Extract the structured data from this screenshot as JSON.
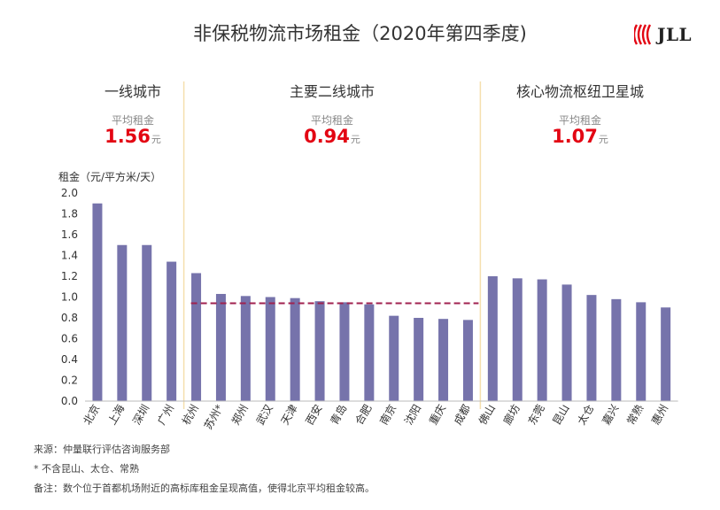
{
  "header": {
    "title": "非保税物流市场租金（2020年第四季度)",
    "logo_text": "JLL"
  },
  "groups": [
    {
      "title": "一线城市",
      "avg_label": "平均租金",
      "avg_value": "1.56",
      "unit": "元"
    },
    {
      "title": "主要二线城市",
      "avg_label": "平均租金",
      "avg_value": "0.94",
      "unit": "元"
    },
    {
      "title": "核心物流枢纽卫星城",
      "avg_label": "平均租金",
      "avg_value": "1.07",
      "unit": "元"
    }
  ],
  "chart_data": {
    "type": "bar",
    "ylabel": "租金（元/平方米/天）",
    "ylim": [
      0,
      2.0
    ],
    "yticks": [
      "0.0",
      "0.2",
      "0.4",
      "0.6",
      "0.8",
      "1.0",
      "1.2",
      "1.4",
      "1.6",
      "1.8",
      "2.0"
    ],
    "categories": [
      "北京",
      "上海",
      "深圳",
      "广州",
      "杭州",
      "苏州*",
      "郑州",
      "武汉",
      "天津",
      "西安",
      "青岛",
      "合肥",
      "南京",
      "沈阳",
      "重庆",
      "成都",
      "佛山",
      "廊坊",
      "东莞",
      "昆山",
      "太仓",
      "嘉兴",
      "常熟",
      "惠州"
    ],
    "values": [
      1.9,
      1.5,
      1.5,
      1.34,
      1.23,
      1.03,
      1.01,
      1.0,
      0.99,
      0.96,
      0.95,
      0.93,
      0.82,
      0.8,
      0.79,
      0.78,
      1.2,
      1.18,
      1.17,
      1.12,
      1.02,
      0.98,
      0.95,
      0.9
    ],
    "bar_color": "#7673ab",
    "average_line": {
      "value": 0.94,
      "color": "#a0224f"
    },
    "separator_color": "#f5dfae"
  },
  "notes": [
    "来源：仲量联行评估咨询服务部",
    "* 不含昆山、太仓、常熟",
    "备注：数个位于首都机场附近的高标库租金呈现高值，使得北京平均租金较高。"
  ]
}
